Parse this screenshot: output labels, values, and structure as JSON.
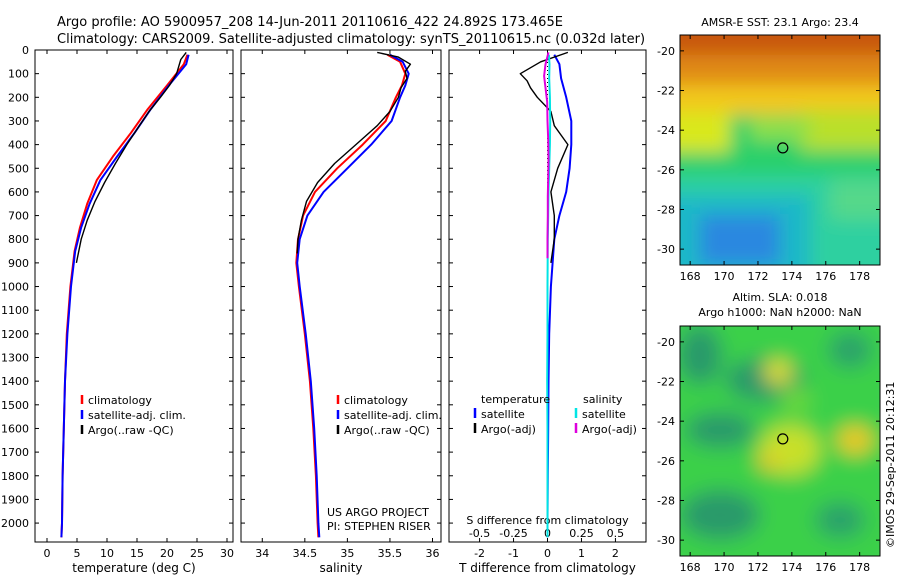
{
  "header": {
    "line1": "Argo profile: AO 5900957_208 14-Jun-2011 20110616_422 24.892S 173.465E",
    "line2": "Climatology: CARS2009. Satellite-adjusted climatology: synTS_20110615.nc (0.032d later)"
  },
  "side_stamp": "©IMOS 29-Sep-2011 20:12:31",
  "colors": {
    "climatology": "#ff0000",
    "satellite": "#0000ff",
    "argo": "#000000",
    "satellite_salinity": "#00e5e5",
    "argo_salinity": "#dd00dd",
    "background": "#ffffff"
  },
  "chart_data": [
    {
      "type": "line",
      "xlabel": "temperature (deg C)",
      "xlim": [
        -2,
        31
      ],
      "xticks": [
        "0",
        "5",
        "10",
        "15",
        "20",
        "25",
        "30"
      ],
      "ylim": [
        2080,
        0
      ],
      "yticks": [
        "0",
        "100",
        "200",
        "300",
        "400",
        "500",
        "600",
        "700",
        "800",
        "900",
        "1000",
        "1100",
        "1200",
        "1300",
        "1400",
        "1500",
        "1600",
        "1700",
        "1800",
        "1900",
        "2000"
      ],
      "legend": [
        "climatology",
        "satellite-adj. clim.",
        "Argo(..raw -QC)"
      ],
      "series": [
        {
          "name": "climatology",
          "color": "#ff0000",
          "depth": [
            20,
            60,
            150,
            250,
            350,
            450,
            550,
            650,
            750,
            850,
            1000,
            1200,
            1400,
            1600,
            1800,
            2000,
            2060
          ],
          "values": [
            23.4,
            22.8,
            20.0,
            16.8,
            14.0,
            11.0,
            8.3,
            6.7,
            5.5,
            4.6,
            3.9,
            3.3,
            3.0,
            2.8,
            2.6,
            2.5,
            2.4
          ]
        },
        {
          "name": "satellite-adj. clim.",
          "color": "#0000ff",
          "depth": [
            20,
            60,
            150,
            250,
            350,
            450,
            550,
            650,
            750,
            850,
            1000,
            1200,
            1400,
            1600,
            1800,
            2000,
            2060
          ],
          "values": [
            23.6,
            23.2,
            20.3,
            17.3,
            14.6,
            11.7,
            8.9,
            7.1,
            5.7,
            4.7,
            4.0,
            3.4,
            3.0,
            2.8,
            2.6,
            2.5,
            2.4
          ]
        },
        {
          "name": "Argo(..raw -QC)",
          "color": "#000000",
          "depth": [
            10,
            40,
            100,
            150,
            200,
            260,
            320,
            400,
            480,
            560,
            640,
            720,
            800,
            900
          ],
          "values": [
            23.2,
            22.3,
            21.6,
            20.4,
            18.9,
            17.0,
            15.4,
            13.3,
            11.4,
            9.6,
            8.0,
            6.7,
            5.7,
            4.9
          ]
        }
      ]
    },
    {
      "type": "line",
      "xlabel": "salinity",
      "xlim": [
        33.75,
        36.1
      ],
      "xticks": [
        "34",
        "34.5",
        "35",
        "35.5",
        "36"
      ],
      "ylim": [
        2080,
        0
      ],
      "legend": [
        "climatology",
        "satellite-adj. clim.",
        "Argo(..raw -QC)"
      ],
      "annotation": [
        "US ARGO PROJECT",
        "PI: STEPHEN RISER"
      ],
      "series": [
        {
          "name": "climatology",
          "color": "#ff0000",
          "depth": [
            20,
            50,
            100,
            150,
            200,
            300,
            400,
            500,
            600,
            700,
            800,
            900,
            1000,
            1200,
            1400,
            1600,
            1800,
            2000,
            2060
          ],
          "values": [
            35.47,
            35.62,
            35.68,
            35.64,
            35.57,
            35.45,
            35.18,
            34.88,
            34.62,
            34.48,
            34.42,
            34.4,
            34.43,
            34.5,
            34.56,
            34.6,
            34.63,
            34.65,
            34.66
          ]
        },
        {
          "name": "satellite-adj. clim.",
          "color": "#0000ff",
          "depth": [
            20,
            50,
            100,
            150,
            200,
            300,
            400,
            500,
            600,
            700,
            800,
            900,
            1000,
            1200,
            1400,
            1600,
            1800,
            2000,
            2060
          ],
          "values": [
            35.5,
            35.65,
            35.72,
            35.68,
            35.62,
            35.52,
            35.28,
            35.0,
            34.72,
            34.53,
            34.44,
            34.41,
            34.44,
            34.51,
            34.57,
            34.61,
            34.64,
            34.66,
            34.67
          ]
        },
        {
          "name": "Argo(..raw -QC)",
          "color": "#000000",
          "depth": [
            10,
            30,
            60,
            90,
            120,
            160,
            200,
            260,
            320,
            400,
            480,
            560,
            640,
            720,
            800,
            860
          ],
          "values": [
            35.35,
            35.6,
            35.74,
            35.68,
            35.7,
            35.63,
            35.6,
            35.5,
            35.35,
            35.1,
            34.85,
            34.65,
            34.52,
            34.46,
            34.42,
            34.41
          ]
        }
      ]
    },
    {
      "type": "line",
      "xlabel": "T difference from climatology",
      "xlabel_top": "S difference from climatology",
      "xlim": [
        -2.9,
        2.9
      ],
      "xticks": [
        "-2",
        "-1",
        "0",
        "1",
        "2"
      ],
      "xticks_top": [
        "-0.5",
        "-0.25",
        "0",
        "0.25",
        "0.5"
      ],
      "ylim": [
        2080,
        0
      ],
      "legend": [
        "temperature",
        "satellite",
        "Argo(-adj)",
        "salinity",
        "satellite",
        "Argo(-adj)"
      ],
      "series": [
        {
          "name": "satellite",
          "color": "#0000ff",
          "depth": [
            20,
            60,
            120,
            200,
            300,
            400,
            500,
            600,
            700,
            800,
            900,
            1000,
            1200,
            1400,
            1600,
            1800,
            2000,
            2060
          ],
          "values": [
            0.2,
            0.35,
            0.4,
            0.55,
            0.7,
            0.7,
            0.65,
            0.55,
            0.35,
            0.2,
            0.15,
            0.1,
            0.05,
            0.03,
            0.02,
            0.01,
            0.0,
            0.0
          ]
        },
        {
          "name": "Argo(-adj)",
          "color": "#000000",
          "depth": [
            10,
            50,
            100,
            130,
            160,
            200,
            260,
            320,
            400,
            500,
            600,
            700,
            800,
            900
          ],
          "values": [
            0.6,
            -0.2,
            -0.8,
            -0.6,
            -0.5,
            -0.3,
            0.1,
            0.2,
            0.6,
            0.3,
            0.1,
            0.2,
            0.2,
            0.1
          ]
        },
        {
          "name": "satellite",
          "color": "#00e5e5",
          "depth": [
            20,
            60,
            120,
            200,
            300,
            400,
            500,
            600,
            700,
            800,
            1000,
            1200,
            1400,
            1600,
            2000,
            2060
          ],
          "values": [
            0.04,
            0.06,
            0.05,
            0.07,
            0.08,
            0.07,
            0.05,
            0.03,
            0.02,
            0.01,
            0.0,
            0.0,
            -0.01,
            0.0,
            0.0,
            0.0
          ]
        },
        {
          "name": "Argo(-adj)",
          "color": "#dd00dd",
          "depth": [
            10,
            60,
            110,
            160,
            220,
            300,
            380,
            460,
            540,
            620,
            700,
            800,
            880
          ],
          "values": [
            0.03,
            -0.06,
            -0.1,
            -0.06,
            -0.01,
            0.0,
            0.02,
            0.03,
            0.02,
            0.01,
            0.01,
            0.0,
            0.0
          ]
        }
      ]
    },
    {
      "type": "heatmap",
      "title": "AMSR-E SST: 23.1  Argo: 23.4",
      "xticks": [
        "168",
        "170",
        "172",
        "174",
        "176",
        "178"
      ],
      "yticks": [
        "-20",
        "-22",
        "-24",
        "-26",
        "-28",
        "-30"
      ],
      "xlim": [
        167.4,
        179.2
      ],
      "ylim": [
        -30.8,
        -19.2
      ],
      "marker": {
        "lon": 173.465,
        "lat": -24.892
      }
    },
    {
      "type": "heatmap",
      "title": [
        "Altim. SLA: 0.018",
        "Argo h1000: NaN h2000: NaN"
      ],
      "xticks": [
        "168",
        "170",
        "172",
        "174",
        "176",
        "178"
      ],
      "yticks": [
        "-20",
        "-22",
        "-24",
        "-26",
        "-28",
        "-30"
      ],
      "xlim": [
        167.4,
        179.2
      ],
      "ylim": [
        -30.8,
        -19.2
      ],
      "marker": {
        "lon": 173.465,
        "lat": -24.892
      }
    }
  ]
}
